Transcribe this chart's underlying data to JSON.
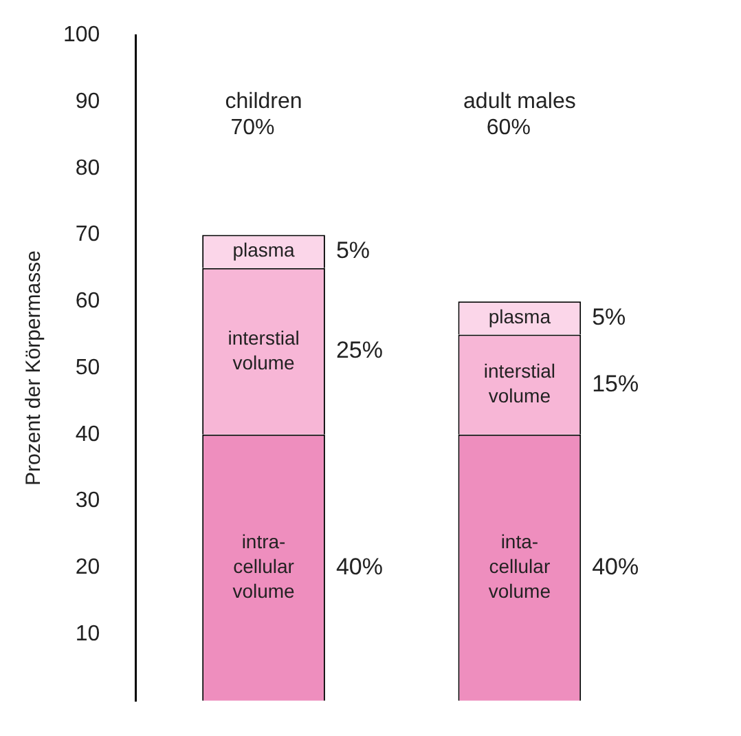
{
  "chart_data": {
    "type": "bar",
    "stacked": true,
    "ylabel": "Prozent der Körpermasse",
    "categories": [
      "children",
      "adult males"
    ],
    "series": [
      {
        "color": "#ee8ebe",
        "values": [
          40,
          40
        ]
      },
      {
        "color": "#f7b6d6",
        "values": [
          25,
          15
        ]
      },
      {
        "color": "#fbd6e9",
        "values": [
          5,
          5
        ]
      }
    ],
    "annotations": [
      "intra-cellular volume",
      "inta-cellular volume",
      "interstial volume",
      "interstial volume",
      "plasma",
      "plasma",
      "40%",
      "40%",
      "25%",
      "15%",
      "5%",
      "5%",
      "70%",
      "60%"
    ],
    "ylim": [
      0,
      100
    ],
    "yticks": [
      10,
      20,
      30,
      40,
      50,
      60,
      70,
      80,
      90,
      100
    ],
    "grid": false,
    "legend": false
  }
}
